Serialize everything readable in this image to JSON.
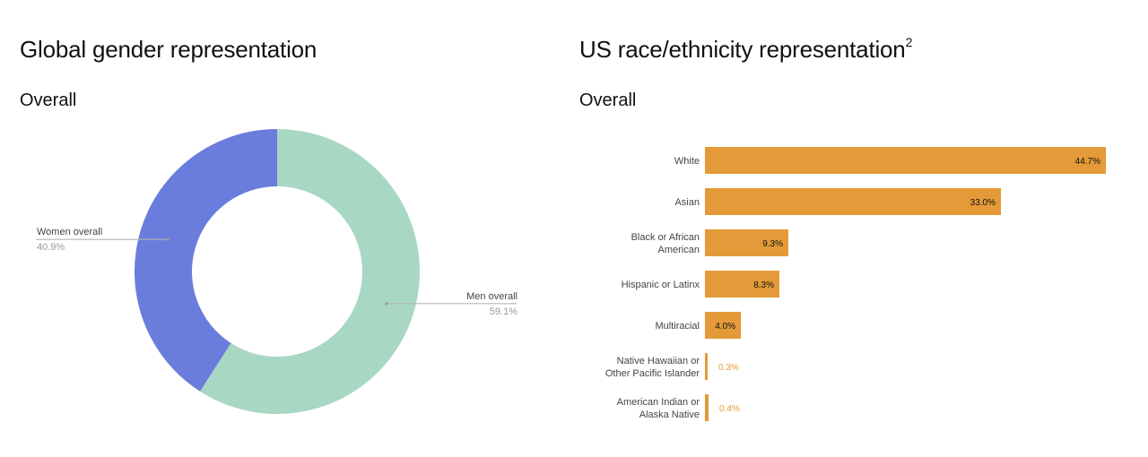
{
  "left": {
    "title": "Global gender representation",
    "subtitle": "Overall"
  },
  "right": {
    "title": "US race/ethnicity representation",
    "title_superscript": "2",
    "subtitle": "Overall"
  },
  "chart_data": [
    {
      "type": "pie",
      "variant": "donut",
      "title": "Global gender representation",
      "subtitle": "Overall",
      "slices": [
        {
          "label": "Men overall",
          "value": 59.1,
          "value_label": "59.1%",
          "color": "#a8d8c3"
        },
        {
          "label": "Women overall",
          "value": 40.9,
          "value_label": "40.9%",
          "color": "#6a7ddc"
        }
      ]
    },
    {
      "type": "bar",
      "orientation": "horizontal",
      "title": "US race/ethnicity representation",
      "subtitle": "Overall",
      "bar_color": "#e49a38",
      "categories": [
        [
          "White"
        ],
        [
          "Asian"
        ],
        [
          "Black or African",
          "American"
        ],
        [
          "Hispanic or Latinx"
        ],
        [
          "Multiracial"
        ],
        [
          "Native Hawaiian or",
          "Other Pacific Islander"
        ],
        [
          "American Indian or",
          "Alaska Native"
        ]
      ],
      "values": [
        44.7,
        33.0,
        9.3,
        8.3,
        4.0,
        0.3,
        0.4
      ],
      "value_labels": [
        "44.7%",
        "33.0%",
        "9.3%",
        "8.3%",
        "4.0%",
        "0.3%",
        "0.4%"
      ],
      "xlim": [
        0,
        44.7
      ]
    }
  ]
}
